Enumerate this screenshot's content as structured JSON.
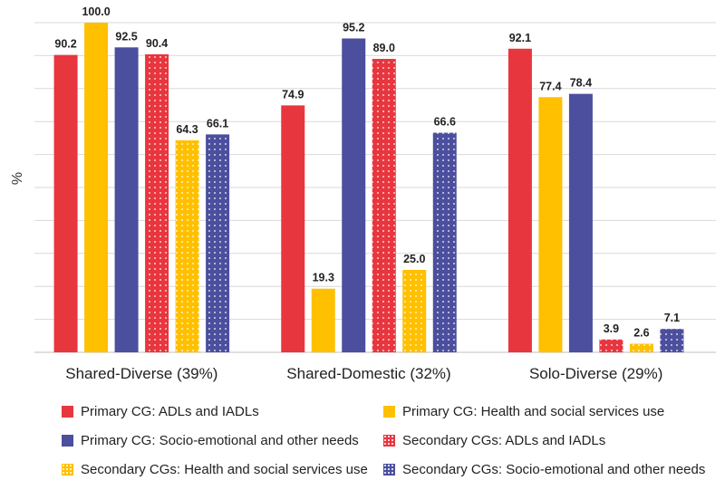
{
  "chart_data": {
    "type": "bar",
    "title": "",
    "xlabel": "",
    "ylabel": "%",
    "ylim": [
      0,
      100
    ],
    "grid": true,
    "categories": [
      "Shared-Diverse (39%)",
      "Shared-Domestic (32%)",
      "Solo-Diverse (29%)"
    ],
    "series": [
      {
        "name": "Primary CG: ADLs and IADLs",
        "color": "#E8363F",
        "pattern": "solid",
        "values": [
          90.2,
          74.9,
          92.1
        ]
      },
      {
        "name": "Primary CG: Health and social services use",
        "color": "#FFC000",
        "pattern": "solid",
        "values": [
          100.0,
          19.3,
          77.4
        ]
      },
      {
        "name": "Primary CG: Socio-emotional and other needs",
        "color": "#4B4F9E",
        "pattern": "solid",
        "values": [
          92.5,
          95.2,
          78.4
        ]
      },
      {
        "name": "Secondary CGs: ADLs and IADLs",
        "color": "#E8363F",
        "pattern": "dotted",
        "values": [
          90.4,
          89.0,
          3.9
        ]
      },
      {
        "name": "Secondary CGs: Health and social services use",
        "color": "#FFC000",
        "pattern": "dotted",
        "values": [
          64.3,
          25.0,
          2.6
        ]
      },
      {
        "name": "Secondary CGs: Socio-emotional and other needs",
        "color": "#4B4F9E",
        "pattern": "dotted",
        "values": [
          66.1,
          66.6,
          7.1
        ]
      }
    ],
    "value_labels": [
      [
        "90.2",
        "74.9",
        "92.1"
      ],
      [
        "100.0",
        "19.3",
        "77.4"
      ],
      [
        "92.5",
        "95.2",
        "78.4"
      ],
      [
        "90.4",
        "89.0",
        "3.9"
      ],
      [
        "64.3",
        "25.0",
        "2.6"
      ],
      [
        "66.1",
        "66.6",
        "7.1"
      ]
    ]
  }
}
